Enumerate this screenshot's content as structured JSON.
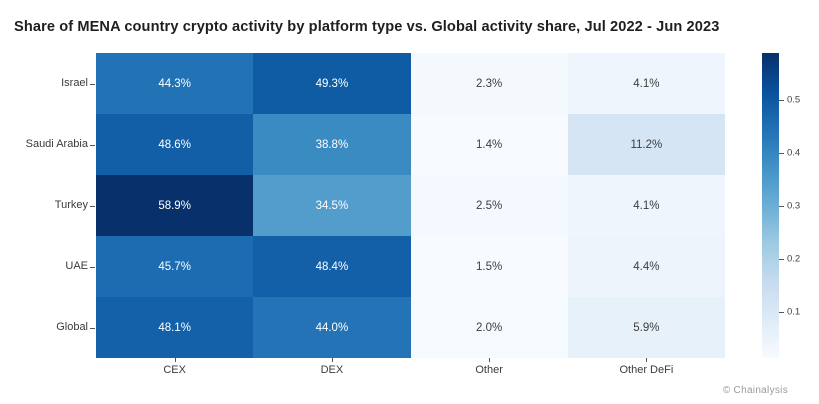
{
  "title": "Share of MENA country crypto activity by platform type vs. Global activity share, Jul 2022 - Jun 2023",
  "credit": "© Chainalysis",
  "chart_data": {
    "type": "heatmap",
    "rows": [
      "Israel",
      "Saudi Arabia",
      "Turkey",
      "UAE",
      "Global"
    ],
    "columns": [
      "CEX",
      "DEX",
      "Other",
      "Other DeFi"
    ],
    "values_percent": [
      [
        44.3,
        49.3,
        2.3,
        4.1
      ],
      [
        48.6,
        38.8,
        1.4,
        11.2
      ],
      [
        58.9,
        34.5,
        2.5,
        4.1
      ],
      [
        45.7,
        48.4,
        1.5,
        4.4
      ],
      [
        48.1,
        44.0,
        2.0,
        5.9
      ]
    ],
    "value_suffix": "%",
    "vmin": 0.014,
    "vmax": 0.589,
    "colorbar_ticks": [
      0.5,
      0.4,
      0.3,
      0.2,
      0.1
    ],
    "colorbar_position": "right",
    "grid": false
  },
  "colors": {
    "colormap_name": "Blues",
    "colormap_stops": [
      "#f7fbff",
      "#deebf7",
      "#c6dbef",
      "#9ecae1",
      "#6baed6",
      "#4292c6",
      "#2171b5",
      "#08519c",
      "#08306b"
    ],
    "cell_text_light": "#ffffff",
    "cell_text_dark": "#3d3d3d",
    "title_color": "#1f1f1f",
    "axis_text_color": "#3b3b3b",
    "credit_color": "#9a9a9a"
  }
}
